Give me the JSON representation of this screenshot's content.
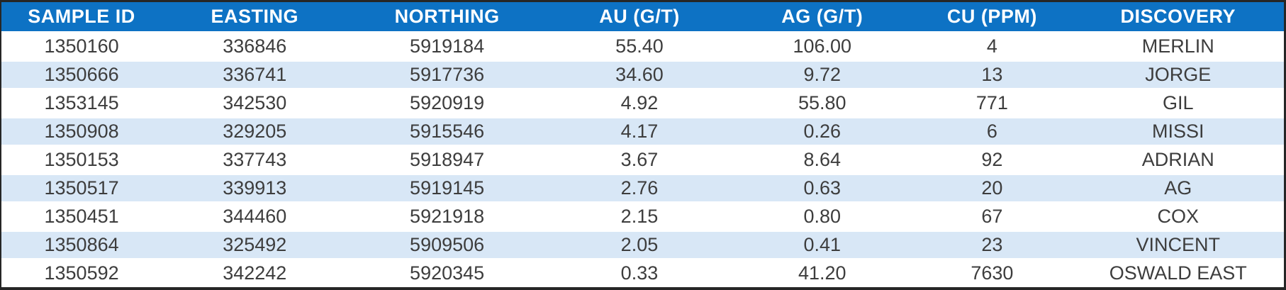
{
  "table": {
    "columns": [
      "SAMPLE ID",
      "EASTING",
      "NORTHING",
      "AU (G/T)",
      "AG (G/T)",
      "CU (PPM)",
      "DISCOVERY"
    ],
    "rows": [
      [
        "1350160",
        "336846",
        "5919184",
        "55.40",
        "106.00",
        "4",
        "MERLIN"
      ],
      [
        "1350666",
        "336741",
        "5917736",
        "34.60",
        "9.72",
        "13",
        "JORGE"
      ],
      [
        "1353145",
        "342530",
        "5920919",
        "4.92",
        "55.80",
        "771",
        "GIL"
      ],
      [
        "1350908",
        "329205",
        "5915546",
        "4.17",
        "0.26",
        "6",
        "MISSI"
      ],
      [
        "1350153",
        "337743",
        "5918947",
        "3.67",
        "8.64",
        "92",
        "ADRIAN"
      ],
      [
        "1350517",
        "339913",
        "5919145",
        "2.76",
        "0.63",
        "20",
        "AG"
      ],
      [
        "1350451",
        "344460",
        "5921918",
        "2.15",
        "0.80",
        "67",
        "COX"
      ],
      [
        "1350864",
        "325492",
        "5909506",
        "2.05",
        "0.41",
        "23",
        "VINCENT"
      ],
      [
        "1350592",
        "342242",
        "5920345",
        "0.33",
        "41.20",
        "7630",
        "OSWALD EAST"
      ]
    ]
  },
  "colors": {
    "header_bg": "#0d72c4",
    "header_text": "#ffffff",
    "stripe_bg": "#d8e7f6",
    "row_bg": "#ffffff",
    "text": "#3d3d3d",
    "border": "#262626"
  },
  "chart_data": {
    "type": "table",
    "title": "",
    "columns": [
      "SAMPLE ID",
      "EASTING",
      "NORTHING",
      "AU (G/T)",
      "AG (G/T)",
      "CU (PPM)",
      "DISCOVERY"
    ],
    "rows": [
      [
        1350160,
        336846,
        5919184,
        55.4,
        106.0,
        4,
        "MERLIN"
      ],
      [
        1350666,
        336741,
        5917736,
        34.6,
        9.72,
        13,
        "JORGE"
      ],
      [
        1353145,
        342530,
        5920919,
        4.92,
        55.8,
        771,
        "GIL"
      ],
      [
        1350908,
        329205,
        5915546,
        4.17,
        0.26,
        6,
        "MISSI"
      ],
      [
        1350153,
        337743,
        5918947,
        3.67,
        8.64,
        92,
        "ADRIAN"
      ],
      [
        1350517,
        339913,
        5919145,
        2.76,
        0.63,
        20,
        "AG"
      ],
      [
        1350451,
        344460,
        5921918,
        2.15,
        0.8,
        67,
        "COX"
      ],
      [
        1350864,
        325492,
        5909506,
        2.05,
        0.41,
        23,
        "VINCENT"
      ],
      [
        1350592,
        342242,
        5920345,
        0.33,
        41.2,
        7630,
        "OSWALD EAST"
      ]
    ],
    "layout": {
      "header_fill": "#0d72c4",
      "zebra_striping": true,
      "all_text_centered": true
    }
  }
}
